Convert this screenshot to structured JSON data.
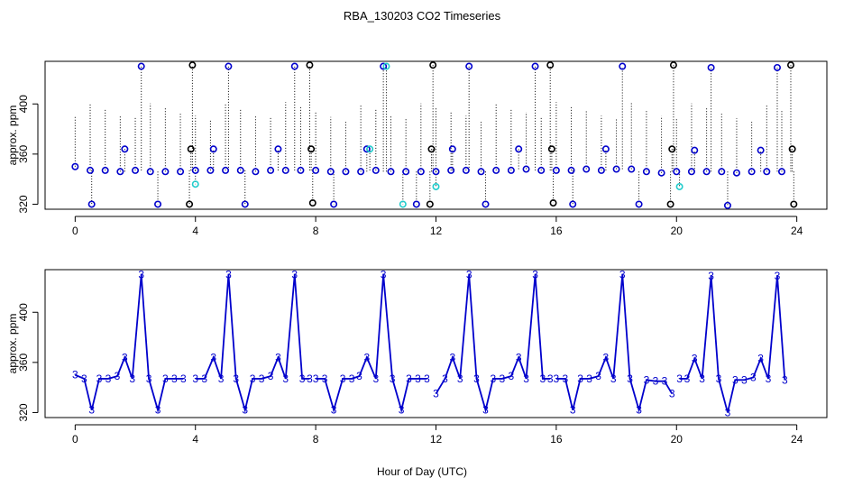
{
  "chart_data": {
    "title": "RBA_130203  CO2 Timeseries",
    "xlabel": "Hour of Day (UTC)",
    "x_ticks": [
      0,
      4,
      8,
      12,
      16,
      20,
      24
    ],
    "xlim": [
      -1,
      25
    ],
    "panels": [
      {
        "type": "scatter",
        "ylabel": "approx. ppm",
        "ylim": [
          316,
          434
        ],
        "y_ticks": [
          320,
          360,
          400
        ],
        "series": [
          {
            "color": "#0000cc",
            "marker": "circle",
            "x": [
              0.0,
              0.5,
              1.0,
              1.5,
              2.0,
              2.5,
              3.0,
              3.5,
              4.0,
              4.5,
              5.0,
              5.5,
              6.0,
              6.5,
              7.0,
              7.5,
              8.0,
              8.5,
              9.0,
              9.5,
              10.0,
              10.5,
              11.0,
              11.5,
              12.0,
              12.5,
              13.0,
              13.5,
              14.0,
              14.5,
              15.0,
              15.5,
              16.0,
              16.5,
              17.0,
              17.5,
              18.0,
              18.5,
              19.0,
              19.5,
              20.0,
              20.5,
              21.0,
              21.5,
              22.0,
              22.5,
              23.0,
              23.5
            ],
            "y": [
              350,
              347,
              347,
              346,
              347,
              346,
              346,
              346,
              347,
              347,
              347,
              347,
              346,
              347,
              347,
              347,
              347,
              346,
              346,
              346,
              347,
              346,
              346,
              346,
              346,
              347,
              347,
              346,
              347,
              347,
              348,
              347,
              347,
              347,
              348,
              347,
              348,
              348,
              346,
              345,
              346,
              346,
              346,
              346,
              345,
              346,
              346,
              346
            ]
          },
          {
            "color": "#0000cc",
            "marker": "circle",
            "x": [
              0.55,
              1.65,
              2.2,
              2.75,
              4.6,
              5.1,
              5.65,
              6.75,
              7.3,
              8.6,
              9.7,
              10.25,
              11.35,
              12.55,
              13.1,
              13.65,
              14.75,
              15.3,
              16.55,
              17.65,
              18.2,
              18.75,
              20.6,
              21.15,
              21.7,
              22.8,
              23.35
            ],
            "y": [
              320,
              364,
              430,
              320,
              364,
              430,
              320,
              364,
              430,
              320,
              364,
              430,
              320,
              364,
              430,
              320,
              364,
              430,
              320,
              364,
              430,
              320,
              363,
              429,
              319,
              363,
              429
            ]
          },
          {
            "color": "#000000",
            "marker": "circle",
            "x": [
              3.8,
              3.85,
              3.9,
              7.8,
              7.85,
              7.9,
              11.8,
              11.85,
              11.9,
              15.8,
              15.85,
              15.9,
              19.8,
              19.85,
              19.9,
              23.8,
              23.85,
              23.9
            ],
            "y": [
              320,
              364,
              431,
              431,
              364,
              321,
              320,
              364,
              431,
              431,
              364,
              321,
              320,
              364,
              431,
              431,
              364,
              320
            ]
          },
          {
            "color": "#22cccc",
            "marker": "circle",
            "x": [
              4.0,
              9.8,
              10.35,
              10.9,
              12.0,
              20.1
            ],
            "y": [
              336,
              364,
              430,
              320,
              334,
              334
            ]
          }
        ]
      },
      {
        "type": "line",
        "ylabel": "approx. ppm",
        "ylim": [
          316,
          434
        ],
        "y_ticks": [
          320,
          360,
          400
        ],
        "point_label": "3",
        "series": [
          {
            "color": "#0000cc",
            "x": [
              0.0,
              0.3,
              0.55,
              0.8,
              1.1,
              1.4,
              1.65,
              1.9,
              2.2,
              2.45,
              2.75,
              3.0,
              3.3,
              3.6
            ],
            "y": [
              350,
              347,
              322,
              347,
              347,
              349,
              364,
              347,
              430,
              347,
              322,
              347,
              347,
              347
            ]
          },
          {
            "color": "#0000cc",
            "x": [
              4.0,
              4.3,
              4.6,
              4.85,
              5.1,
              5.35,
              5.65,
              5.9,
              6.2,
              6.5,
              6.75,
              7.0,
              7.3,
              7.55,
              7.8
            ],
            "y": [
              347,
              347,
              364,
              347,
              430,
              347,
              322,
              347,
              347,
              349,
              364,
              347,
              430,
              347,
              347
            ]
          },
          {
            "color": "#0000cc",
            "x": [
              8.0,
              8.3,
              8.6,
              8.9,
              9.2,
              9.45,
              9.7,
              10.0,
              10.25,
              10.55,
              10.85,
              11.1,
              11.4,
              11.7
            ],
            "y": [
              347,
              347,
              322,
              347,
              347,
              349,
              364,
              347,
              430,
              347,
              322,
              347,
              347,
              347
            ]
          },
          {
            "color": "#0000cc",
            "x": [
              12.0,
              12.3,
              12.55,
              12.8,
              13.1,
              13.35,
              13.65,
              13.9,
              14.2,
              14.5,
              14.75,
              15.0,
              15.3,
              15.55,
              15.8
            ],
            "y": [
              335,
              347,
              364,
              347,
              430,
              347,
              322,
              347,
              347,
              349,
              364,
              347,
              430,
              347,
              347
            ]
          },
          {
            "color": "#0000cc",
            "x": [
              16.0,
              16.3,
              16.55,
              16.8,
              17.1,
              17.4,
              17.65,
              17.9,
              18.2,
              18.45,
              18.75,
              19.0,
              19.3,
              19.6,
              19.85
            ],
            "y": [
              347,
              347,
              322,
              347,
              347,
              349,
              364,
              347,
              430,
              347,
              322,
              346,
              345,
              345,
              335
            ]
          },
          {
            "color": "#0000cc",
            "x": [
              20.1,
              20.35,
              20.6,
              20.85,
              21.15,
              21.4,
              21.7,
              21.95,
              22.25,
              22.55,
              22.8,
              23.05,
              23.35,
              23.6
            ],
            "y": [
              347,
              347,
              363,
              347,
              429,
              347,
              320,
              346,
              346,
              348,
              363,
              347,
              429,
              346
            ]
          }
        ]
      }
    ]
  }
}
